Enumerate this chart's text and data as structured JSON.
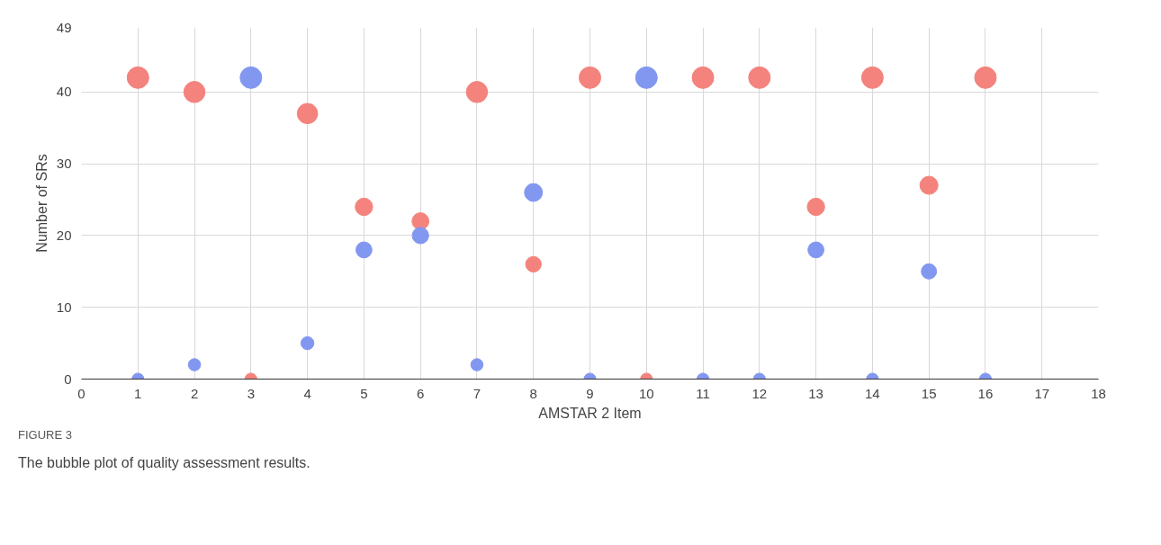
{
  "chart_data": {
    "type": "bubble",
    "xlabel": "AMSTAR 2 Item",
    "ylabel": "Number of SRs",
    "x": [
      1,
      2,
      3,
      4,
      5,
      6,
      7,
      8,
      9,
      10,
      11,
      12,
      13,
      14,
      15,
      16
    ],
    "series": [
      {
        "color": "#f4837d",
        "values": [
          42,
          40,
          0,
          37,
          24,
          22,
          40,
          16,
          42,
          0,
          42,
          42,
          24,
          42,
          27,
          42
        ],
        "sizes": [
          1,
          0.96,
          0.3,
          0.89,
          0.65,
          0.61,
          0.96,
          0.52,
          1,
          0.3,
          1,
          1,
          0.65,
          1,
          0.7,
          1
        ]
      },
      {
        "color": "#8297f0",
        "values": [
          0,
          2,
          42,
          5,
          18,
          20,
          2,
          26,
          0,
          42,
          0,
          0,
          18,
          0,
          15,
          0
        ],
        "sizes": [
          0.3,
          0.32,
          1,
          0.36,
          0.55,
          0.58,
          0.32,
          0.69,
          0.3,
          1,
          0.3,
          0.3,
          0.55,
          0.3,
          0.5,
          0.3
        ]
      }
    ],
    "xlim": [
      0,
      18
    ],
    "xticks": [
      0,
      1,
      2,
      3,
      4,
      5,
      6,
      7,
      8,
      9,
      10,
      11,
      12,
      13,
      14,
      15,
      16,
      17,
      18
    ],
    "ylim": [
      0,
      49
    ],
    "yticks": [
      0,
      10,
      20,
      30,
      40,
      49
    ],
    "grid": true,
    "marker": "circle",
    "annotations": [
      "FIGURE 3",
      "The bubble plot of quality assessment results."
    ]
  }
}
